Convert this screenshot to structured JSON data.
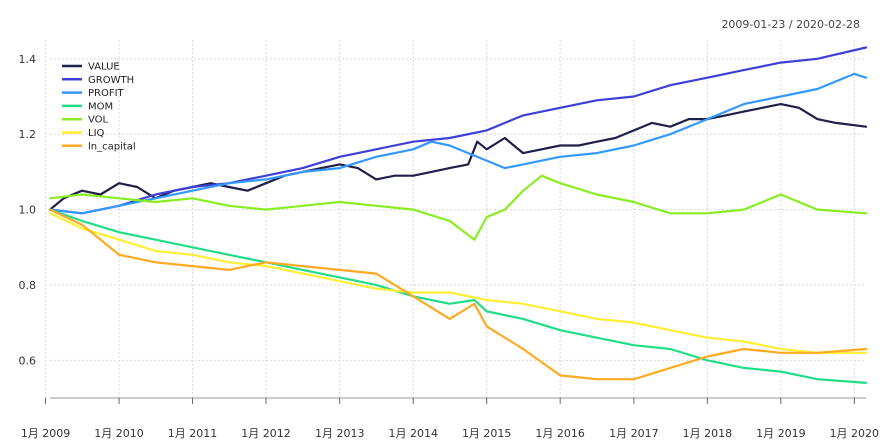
{
  "chart_data": {
    "type": "line",
    "title": "",
    "date_range_label": "2009-01-23 / 2020-02-28",
    "xlabel": "",
    "ylabel": "",
    "grid": true,
    "legend_position": "top-left",
    "x_ticks": [
      {
        "date": "2009-01",
        "label": "1月 2009"
      },
      {
        "date": "2010-01",
        "label": "1月 2010"
      },
      {
        "date": "2011-01",
        "label": "1月 2011"
      },
      {
        "date": "2012-01",
        "label": "1月 2012"
      },
      {
        "date": "2013-01",
        "label": "1月 2013"
      },
      {
        "date": "2014-01",
        "label": "1月 2014"
      },
      {
        "date": "2015-01",
        "label": "1月 2015"
      },
      {
        "date": "2016-01",
        "label": "1月 2016"
      },
      {
        "date": "2017-01",
        "label": "1月 2017"
      },
      {
        "date": "2018-01",
        "label": "1月 2018"
      },
      {
        "date": "2019-01",
        "label": "1月 2019"
      },
      {
        "date": "2020-01",
        "label": "1月 2020"
      }
    ],
    "xlim": [
      "2009-01-23",
      "2020-02-28"
    ],
    "ylim": [
      0.5,
      1.45
    ],
    "y_ticks": [
      {
        "value": 0.6,
        "label": "0.6"
      },
      {
        "value": 0.8,
        "label": "0.8"
      },
      {
        "value": 1.0,
        "label": "1.0"
      },
      {
        "value": 1.2,
        "label": "1.2"
      },
      {
        "value": 1.4,
        "label": "1.4"
      }
    ],
    "series": [
      {
        "name": "VALUE",
        "color": "#1f1f4a",
        "points": [
          [
            "2009-01-23",
            1.0
          ],
          [
            "2009-04-01",
            1.03
          ],
          [
            "2009-07-01",
            1.05
          ],
          [
            "2009-10-01",
            1.04
          ],
          [
            "2010-01-01",
            1.07
          ],
          [
            "2010-04-01",
            1.06
          ],
          [
            "2010-07-01",
            1.03
          ],
          [
            "2010-10-01",
            1.05
          ],
          [
            "2011-01-01",
            1.06
          ],
          [
            "2011-04-01",
            1.07
          ],
          [
            "2011-07-01",
            1.06
          ],
          [
            "2011-10-01",
            1.05
          ],
          [
            "2012-01-01",
            1.07
          ],
          [
            "2012-04-01",
            1.09
          ],
          [
            "2012-07-01",
            1.1
          ],
          [
            "2012-10-01",
            1.11
          ],
          [
            "2013-01-01",
            1.12
          ],
          [
            "2013-04-01",
            1.11
          ],
          [
            "2013-07-01",
            1.08
          ],
          [
            "2013-10-01",
            1.09
          ],
          [
            "2014-01-01",
            1.09
          ],
          [
            "2014-04-01",
            1.1
          ],
          [
            "2014-07-01",
            1.11
          ],
          [
            "2014-10-01",
            1.12
          ],
          [
            "2014-11-15",
            1.18
          ],
          [
            "2015-01-01",
            1.16
          ],
          [
            "2015-04-01",
            1.19
          ],
          [
            "2015-07-01",
            1.15
          ],
          [
            "2015-10-01",
            1.16
          ],
          [
            "2016-01-01",
            1.17
          ],
          [
            "2016-04-01",
            1.17
          ],
          [
            "2016-07-01",
            1.18
          ],
          [
            "2016-10-01",
            1.19
          ],
          [
            "2017-01-01",
            1.21
          ],
          [
            "2017-04-01",
            1.23
          ],
          [
            "2017-07-01",
            1.22
          ],
          [
            "2017-10-01",
            1.24
          ],
          [
            "2018-01-01",
            1.24
          ],
          [
            "2018-04-01",
            1.25
          ],
          [
            "2018-07-01",
            1.26
          ],
          [
            "2018-10-01",
            1.27
          ],
          [
            "2019-01-01",
            1.28
          ],
          [
            "2019-04-01",
            1.27
          ],
          [
            "2019-07-01",
            1.24
          ],
          [
            "2019-10-01",
            1.23
          ],
          [
            "2020-02-28",
            1.22
          ]
        ]
      },
      {
        "name": "GROWTH",
        "color": "#3f3fd8",
        "points": [
          [
            "2009-01-23",
            1.0
          ],
          [
            "2009-07-01",
            0.99
          ],
          [
            "2010-01-01",
            1.01
          ],
          [
            "2010-07-01",
            1.04
          ],
          [
            "2011-01-01",
            1.06
          ],
          [
            "2011-07-01",
            1.07
          ],
          [
            "2012-01-01",
            1.09
          ],
          [
            "2012-07-01",
            1.11
          ],
          [
            "2013-01-01",
            1.14
          ],
          [
            "2013-07-01",
            1.16
          ],
          [
            "2014-01-01",
            1.18
          ],
          [
            "2014-07-01",
            1.19
          ],
          [
            "2015-01-01",
            1.21
          ],
          [
            "2015-07-01",
            1.25
          ],
          [
            "2016-01-01",
            1.27
          ],
          [
            "2016-07-01",
            1.29
          ],
          [
            "2017-01-01",
            1.3
          ],
          [
            "2017-07-01",
            1.33
          ],
          [
            "2018-01-01",
            1.35
          ],
          [
            "2018-07-01",
            1.37
          ],
          [
            "2019-01-01",
            1.39
          ],
          [
            "2019-07-01",
            1.4
          ],
          [
            "2020-02-28",
            1.43
          ]
        ]
      },
      {
        "name": "PROFIT",
        "color": "#3399ff",
        "points": [
          [
            "2009-01-23",
            1.0
          ],
          [
            "2009-07-01",
            0.99
          ],
          [
            "2010-01-01",
            1.01
          ],
          [
            "2010-07-01",
            1.03
          ],
          [
            "2011-01-01",
            1.05
          ],
          [
            "2011-07-01",
            1.07
          ],
          [
            "2012-01-01",
            1.08
          ],
          [
            "2012-07-01",
            1.1
          ],
          [
            "2013-01-01",
            1.11
          ],
          [
            "2013-07-01",
            1.14
          ],
          [
            "2014-01-01",
            1.16
          ],
          [
            "2014-04-01",
            1.18
          ],
          [
            "2014-07-01",
            1.17
          ],
          [
            "2014-10-01",
            1.15
          ],
          [
            "2015-01-01",
            1.13
          ],
          [
            "2015-04-01",
            1.11
          ],
          [
            "2015-07-01",
            1.12
          ],
          [
            "2016-01-01",
            1.14
          ],
          [
            "2016-07-01",
            1.15
          ],
          [
            "2017-01-01",
            1.17
          ],
          [
            "2017-07-01",
            1.2
          ],
          [
            "2018-01-01",
            1.24
          ],
          [
            "2018-07-01",
            1.28
          ],
          [
            "2019-01-01",
            1.3
          ],
          [
            "2019-07-01",
            1.32
          ],
          [
            "2020-01-01",
            1.36
          ],
          [
            "2020-02-28",
            1.35
          ]
        ]
      },
      {
        "name": "MOM",
        "color": "#22dd88",
        "points": [
          [
            "2009-01-23",
            1.0
          ],
          [
            "2009-07-01",
            0.97
          ],
          [
            "2010-01-01",
            0.94
          ],
          [
            "2010-07-01",
            0.92
          ],
          [
            "2011-01-01",
            0.9
          ],
          [
            "2011-07-01",
            0.88
          ],
          [
            "2012-01-01",
            0.86
          ],
          [
            "2012-07-01",
            0.84
          ],
          [
            "2013-01-01",
            0.82
          ],
          [
            "2013-07-01",
            0.8
          ],
          [
            "2014-01-01",
            0.77
          ],
          [
            "2014-07-01",
            0.75
          ],
          [
            "2014-11-01",
            0.76
          ],
          [
            "2015-01-01",
            0.73
          ],
          [
            "2015-07-01",
            0.71
          ],
          [
            "2016-01-01",
            0.68
          ],
          [
            "2016-07-01",
            0.66
          ],
          [
            "2017-01-01",
            0.64
          ],
          [
            "2017-07-01",
            0.63
          ],
          [
            "2018-01-01",
            0.6
          ],
          [
            "2018-07-01",
            0.58
          ],
          [
            "2019-01-01",
            0.57
          ],
          [
            "2019-07-01",
            0.55
          ],
          [
            "2020-02-28",
            0.54
          ]
        ]
      },
      {
        "name": "VOL",
        "color": "#88ee22",
        "points": [
          [
            "2009-01-23",
            1.03
          ],
          [
            "2009-07-01",
            1.04
          ],
          [
            "2010-01-01",
            1.03
          ],
          [
            "2010-07-01",
            1.02
          ],
          [
            "2011-01-01",
            1.03
          ],
          [
            "2011-07-01",
            1.01
          ],
          [
            "2012-01-01",
            1.0
          ],
          [
            "2012-07-01",
            1.01
          ],
          [
            "2013-01-01",
            1.02
          ],
          [
            "2013-07-01",
            1.01
          ],
          [
            "2014-01-01",
            1.0
          ],
          [
            "2014-07-01",
            0.97
          ],
          [
            "2014-11-01",
            0.92
          ],
          [
            "2015-01-01",
            0.98
          ],
          [
            "2015-04-01",
            1.0
          ],
          [
            "2015-07-01",
            1.05
          ],
          [
            "2015-10-01",
            1.09
          ],
          [
            "2016-01-01",
            1.07
          ],
          [
            "2016-07-01",
            1.04
          ],
          [
            "2017-01-01",
            1.02
          ],
          [
            "2017-07-01",
            0.99
          ],
          [
            "2018-01-01",
            0.99
          ],
          [
            "2018-07-01",
            1.0
          ],
          [
            "2019-01-01",
            1.04
          ],
          [
            "2019-07-01",
            1.0
          ],
          [
            "2020-02-28",
            0.99
          ]
        ]
      },
      {
        "name": "LIQ",
        "color": "#ffee33",
        "points": [
          [
            "2009-01-23",
            0.99
          ],
          [
            "2009-07-01",
            0.95
          ],
          [
            "2010-01-01",
            0.92
          ],
          [
            "2010-07-01",
            0.89
          ],
          [
            "2011-01-01",
            0.88
          ],
          [
            "2011-07-01",
            0.86
          ],
          [
            "2012-01-01",
            0.85
          ],
          [
            "2012-07-01",
            0.83
          ],
          [
            "2013-01-01",
            0.81
          ],
          [
            "2013-07-01",
            0.79
          ],
          [
            "2014-01-01",
            0.78
          ],
          [
            "2014-07-01",
            0.78
          ],
          [
            "2015-01-01",
            0.76
          ],
          [
            "2015-07-01",
            0.75
          ],
          [
            "2016-01-01",
            0.73
          ],
          [
            "2016-07-01",
            0.71
          ],
          [
            "2017-01-01",
            0.7
          ],
          [
            "2017-07-01",
            0.68
          ],
          [
            "2018-01-01",
            0.66
          ],
          [
            "2018-07-01",
            0.65
          ],
          [
            "2019-01-01",
            0.63
          ],
          [
            "2019-07-01",
            0.62
          ],
          [
            "2020-02-28",
            0.62
          ]
        ]
      },
      {
        "name": "ln_capital",
        "color": "#ffaa22",
        "points": [
          [
            "2009-01-23",
            1.0
          ],
          [
            "2009-07-01",
            0.96
          ],
          [
            "2010-01-01",
            0.88
          ],
          [
            "2010-07-01",
            0.86
          ],
          [
            "2011-01-01",
            0.85
          ],
          [
            "2011-07-01",
            0.84
          ],
          [
            "2012-01-01",
            0.86
          ],
          [
            "2012-07-01",
            0.85
          ],
          [
            "2013-01-01",
            0.84
          ],
          [
            "2013-07-01",
            0.83
          ],
          [
            "2014-01-01",
            0.77
          ],
          [
            "2014-07-01",
            0.71
          ],
          [
            "2014-11-01",
            0.75
          ],
          [
            "2015-01-01",
            0.69
          ],
          [
            "2015-07-01",
            0.63
          ],
          [
            "2016-01-01",
            0.56
          ],
          [
            "2016-07-01",
            0.55
          ],
          [
            "2017-01-01",
            0.55
          ],
          [
            "2017-07-01",
            0.58
          ],
          [
            "2018-01-01",
            0.61
          ],
          [
            "2018-07-01",
            0.63
          ],
          [
            "2019-01-01",
            0.62
          ],
          [
            "2019-07-01",
            0.62
          ],
          [
            "2020-02-28",
            0.63
          ]
        ]
      }
    ]
  }
}
